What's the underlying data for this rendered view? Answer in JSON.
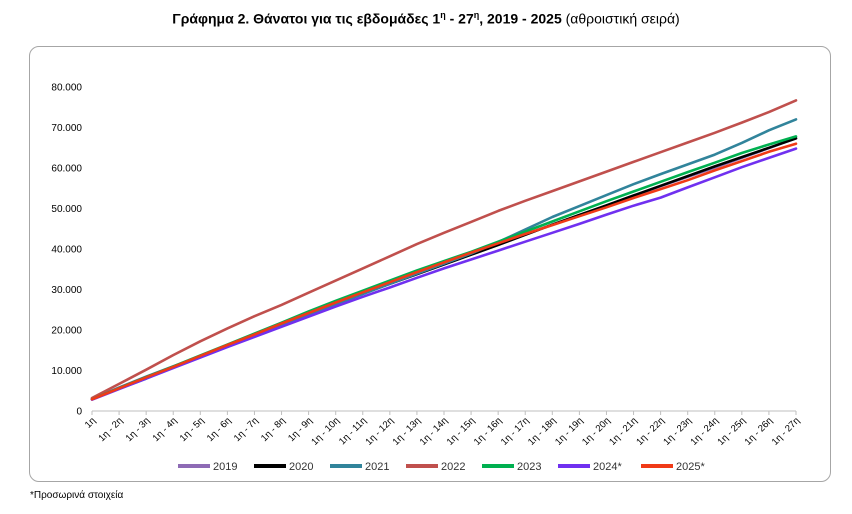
{
  "title": {
    "bold_part1": "Γράφημα 2. Θάνατοι για τις εβδομάδες 1",
    "sup1": "η",
    "bold_part2": " - 27",
    "sup2": "η",
    "bold_part3": ", 2019 - 2025",
    "normal_part": " (αθροιστική σειρά)"
  },
  "footnote": "*Προσωρινά στοιχεία",
  "chart_data": {
    "type": "line",
    "categories": [
      "1η",
      "1η - 2η",
      "1η - 3η",
      "1η - 4η",
      "1η - 5η",
      "1η - 6η",
      "1η - 7η",
      "1η - 8η",
      "1η - 9η",
      "1η - 10η",
      "1η - 11η",
      "1η - 12η",
      "1η - 13η",
      "1η - 14η",
      "1η - 15η",
      "1η - 16η",
      "1η - 17η",
      "1η - 18η",
      "1η - 19η",
      "1η - 20η",
      "1η - 21η",
      "1η - 22η",
      "1η - 23η",
      "1η - 24η",
      "1η - 25η",
      "1η - 26η",
      "1η - 27η"
    ],
    "y_ticks": [
      0,
      10000,
      20000,
      30000,
      40000,
      50000,
      60000,
      70000,
      80000
    ],
    "y_tick_labels": [
      "0",
      "10.000",
      "20.000",
      "30.000",
      "40.000",
      "50.000",
      "60.000",
      "70.000",
      "80.000"
    ],
    "ylim": [
      0,
      80000
    ],
    "legend_position": "bottom",
    "series": [
      {
        "name": "2019",
        "color": "#8e6bb5",
        "values": [
          3000,
          5800,
          8500,
          11000,
          13500,
          16000,
          18600,
          21200,
          23800,
          26400,
          29000,
          31400,
          33800,
          36200,
          38600,
          41000,
          43500,
          46000,
          48400,
          50700,
          53100,
          55500,
          57800,
          60100,
          62500,
          64900,
          67400
        ]
      },
      {
        "name": "2020",
        "color": "#000000",
        "values": [
          2900,
          5600,
          8200,
          10800,
          13400,
          16000,
          18700,
          21300,
          24000,
          26600,
          29000,
          31400,
          33800,
          36200,
          38600,
          41000,
          43500,
          46000,
          48400,
          50800,
          53200,
          55600,
          58000,
          60400,
          62700,
          65000,
          67300
        ]
      },
      {
        "name": "2021",
        "color": "#31849b",
        "values": [
          2900,
          5500,
          8000,
          10800,
          13500,
          16000,
          18500,
          21000,
          23700,
          26300,
          28900,
          31400,
          33900,
          36400,
          38900,
          41700,
          44800,
          47900,
          50600,
          53300,
          56000,
          58500,
          60900,
          63300,
          66200,
          69300,
          72000
        ]
      },
      {
        "name": "2022",
        "color": "#c0504d",
        "values": [
          3200,
          6700,
          10200,
          13800,
          17200,
          20400,
          23400,
          26200,
          29200,
          32200,
          35200,
          38200,
          41200,
          44000,
          46700,
          49400,
          51900,
          54300,
          56700,
          59100,
          61500,
          63900,
          66300,
          68700,
          71200,
          73800,
          76700
        ]
      },
      {
        "name": "2023",
        "color": "#00b050",
        "values": [
          2900,
          5700,
          8400,
          11000,
          13700,
          16400,
          19100,
          21800,
          24600,
          27200,
          29700,
          32200,
          34700,
          37000,
          39300,
          41800,
          44300,
          46800,
          49300,
          51800,
          54200,
          56600,
          59000,
          61300,
          63700,
          65800,
          67800
        ]
      },
      {
        "name": "2024*",
        "color": "#7030f0",
        "values": [
          2800,
          5400,
          8000,
          10600,
          13200,
          15800,
          18300,
          20800,
          23300,
          25800,
          28200,
          30500,
          32900,
          35200,
          37400,
          39600,
          41800,
          44000,
          46200,
          48500,
          50700,
          52700,
          55200,
          57700,
          60200,
          62500,
          64800
        ]
      },
      {
        "name": "2025*",
        "color": "#f03a17",
        "values": [
          2900,
          5600,
          8300,
          10900,
          13600,
          16300,
          18900,
          21600,
          24200,
          26800,
          29300,
          31800,
          34300,
          36700,
          39100,
          41400,
          43700,
          45900,
          48100,
          50300,
          52600,
          54800,
          57000,
          59400,
          61700,
          64000,
          66000
        ]
      }
    ]
  }
}
